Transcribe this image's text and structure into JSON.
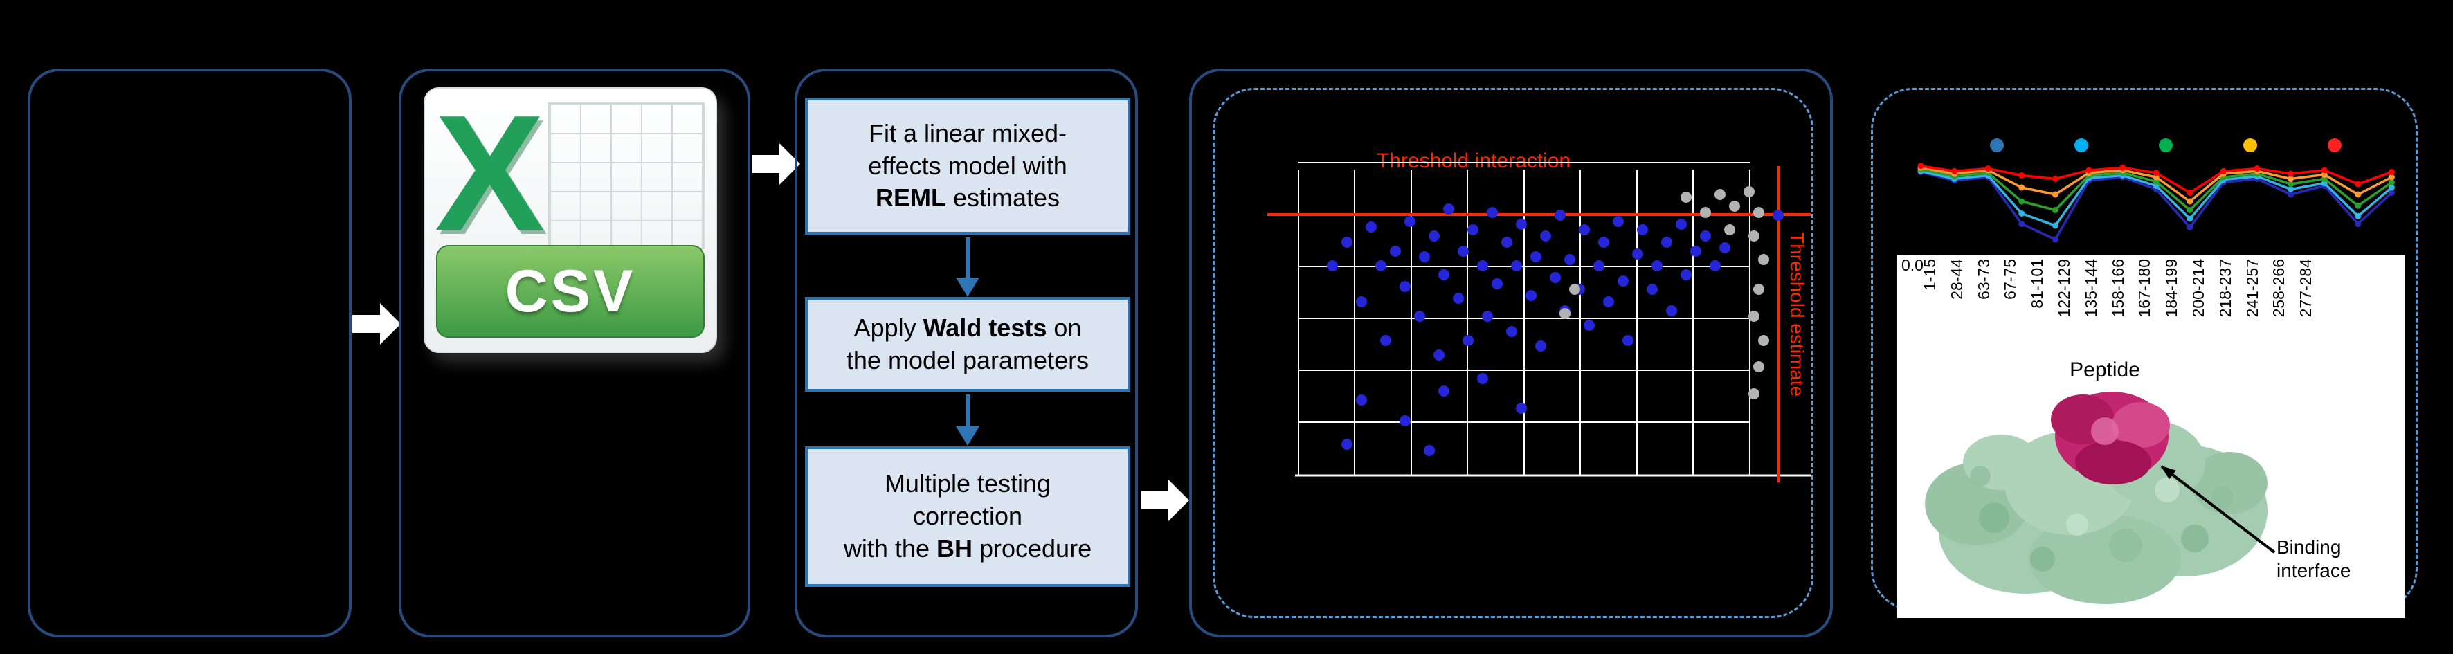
{
  "figure": {
    "background": "#000000"
  },
  "colors": {
    "panel_border": "#274b7d",
    "dashed_border": "#5b9bd5",
    "flow_accent": "#2e75b6",
    "step_box_fill": "#dbe5f1",
    "threshold_red": "#ff2600",
    "significant_blue": "#2626d9",
    "nonsignificant_gray": "#b3b3b3",
    "csv_green": "#3d9a44",
    "protein_green": "#a4ccb0",
    "binding_magenta": "#c2266e"
  },
  "csv_icon": {
    "logo_letter": "X",
    "format_label": "CSV"
  },
  "workflow": {
    "steps": [
      {
        "segments": [
          {
            "t": "Fit a linear mixed-\neffects model with\n"
          },
          {
            "t": "REML",
            "b": true
          },
          {
            "t": " estimates"
          }
        ]
      },
      {
        "segments": [
          {
            "t": "Apply "
          },
          {
            "t": "Wald tests",
            "b": true
          },
          {
            "t": " on\nthe model parameters"
          }
        ]
      },
      {
        "segments": [
          {
            "t": "Multiple testing\ncorrection\nwith the "
          },
          {
            "t": "BH",
            "b": true
          },
          {
            "t": " procedure"
          }
        ]
      }
    ]
  },
  "protein": {
    "binding_interface_label": "Binding interface"
  },
  "chart_data": [
    {
      "type": "scatter",
      "description": "Volcano-style scatter of mixed-model results; axis tick labels not legible in source, point coordinates normalized 0-1 (y measured from top of plot)",
      "grid": true,
      "annotations": [
        {
          "text": "Threshold interaction",
          "color": "#ff2600",
          "position": "top"
        },
        {
          "text": "Threshold estimate",
          "color": "#ff2600",
          "position": "right-vertical"
        }
      ],
      "threshold_lines": {
        "horizontal_y": 0.13,
        "vertical_x": 0.99,
        "color": "#ff2600"
      },
      "series": [
        {
          "name": "significant",
          "color": "#2626d9",
          "points": [
            [
              0.07,
              0.3
            ],
            [
              0.1,
              0.22
            ],
            [
              0.13,
              0.42
            ],
            [
              0.15,
              0.17
            ],
            [
              0.17,
              0.3
            ],
            [
              0.18,
              0.55
            ],
            [
              0.2,
              0.25
            ],
            [
              0.22,
              0.37
            ],
            [
              0.23,
              0.15
            ],
            [
              0.25,
              0.47
            ],
            [
              0.26,
              0.27
            ],
            [
              0.28,
              0.2
            ],
            [
              0.29,
              0.6
            ],
            [
              0.3,
              0.33
            ],
            [
              0.31,
              0.11
            ],
            [
              0.33,
              0.41
            ],
            [
              0.34,
              0.25
            ],
            [
              0.35,
              0.55
            ],
            [
              0.36,
              0.18
            ],
            [
              0.38,
              0.3
            ],
            [
              0.39,
              0.47
            ],
            [
              0.4,
              0.12
            ],
            [
              0.41,
              0.36
            ],
            [
              0.43,
              0.22
            ],
            [
              0.44,
              0.52
            ],
            [
              0.45,
              0.3
            ],
            [
              0.46,
              0.16
            ],
            [
              0.48,
              0.4
            ],
            [
              0.49,
              0.27
            ],
            [
              0.5,
              0.57
            ],
            [
              0.51,
              0.2
            ],
            [
              0.53,
              0.34
            ],
            [
              0.54,
              0.13
            ],
            [
              0.55,
              0.45
            ],
            [
              0.56,
              0.28
            ],
            [
              0.58,
              0.38
            ],
            [
              0.59,
              0.18
            ],
            [
              0.6,
              0.5
            ],
            [
              0.62,
              0.3
            ],
            [
              0.63,
              0.22
            ],
            [
              0.64,
              0.42
            ],
            [
              0.66,
              0.15
            ],
            [
              0.67,
              0.35
            ],
            [
              0.68,
              0.55
            ],
            [
              0.7,
              0.26
            ],
            [
              0.71,
              0.18
            ],
            [
              0.73,
              0.38
            ],
            [
              0.74,
              0.3
            ],
            [
              0.76,
              0.22
            ],
            [
              0.77,
              0.45
            ],
            [
              0.79,
              0.16
            ],
            [
              0.8,
              0.33
            ],
            [
              0.82,
              0.25
            ],
            [
              0.84,
              0.2
            ],
            [
              0.86,
              0.3
            ],
            [
              0.88,
              0.24
            ],
            [
              0.13,
              0.75
            ],
            [
              0.22,
              0.82
            ],
            [
              0.3,
              0.72
            ],
            [
              0.38,
              0.68
            ],
            [
              0.46,
              0.78
            ],
            [
              0.1,
              0.9
            ],
            [
              0.27,
              0.92
            ],
            [
              0.99,
              0.13
            ]
          ]
        },
        {
          "name": "not-significant",
          "color": "#b3b3b3",
          "points": [
            [
              0.8,
              0.07
            ],
            [
              0.84,
              0.12
            ],
            [
              0.87,
              0.06
            ],
            [
              0.9,
              0.1
            ],
            [
              0.93,
              0.05
            ],
            [
              0.95,
              0.12
            ],
            [
              0.94,
              0.2
            ],
            [
              0.96,
              0.28
            ],
            [
              0.95,
              0.38
            ],
            [
              0.94,
              0.47
            ],
            [
              0.96,
              0.55
            ],
            [
              0.95,
              0.64
            ],
            [
              0.94,
              0.73
            ],
            [
              0.57,
              0.38
            ],
            [
              0.55,
              0.46
            ],
            [
              0.89,
              0.18
            ]
          ]
        }
      ]
    },
    {
      "type": "line",
      "title": "",
      "xlabel": "Peptide",
      "visible_ytick": "0.0",
      "categories": [
        "1-15",
        "28-44",
        "63-73",
        "67-75",
        "81-101",
        "122-129",
        "135-144",
        "158-166",
        "167-180",
        "184-199",
        "200-214",
        "218-237",
        "241-257",
        "258-266",
        "277-284"
      ],
      "legend_dots": [
        "#2e75b6",
        "#00b0f0",
        "#00b050",
        "#ffc000",
        "#ff2222"
      ],
      "values_note": "values normalized 0-1 (1 = top baseline, dips = larger difference)",
      "series": [
        {
          "name": "deep-blue",
          "color": "#2929b8",
          "values": [
            0.86,
            0.76,
            0.8,
            0.26,
            0.08,
            0.76,
            0.8,
            0.66,
            0.22,
            0.74,
            0.78,
            0.6,
            0.7,
            0.26,
            0.62
          ]
        },
        {
          "name": "light-blue",
          "color": "#33b4e4",
          "values": [
            0.87,
            0.78,
            0.82,
            0.38,
            0.24,
            0.79,
            0.82,
            0.7,
            0.32,
            0.77,
            0.81,
            0.66,
            0.73,
            0.35,
            0.68
          ]
        },
        {
          "name": "green",
          "color": "#2ca02c",
          "values": [
            0.89,
            0.81,
            0.85,
            0.52,
            0.42,
            0.82,
            0.85,
            0.75,
            0.42,
            0.8,
            0.84,
            0.72,
            0.78,
            0.47,
            0.74
          ]
        },
        {
          "name": "orange",
          "color": "#ff9933",
          "values": [
            0.91,
            0.84,
            0.88,
            0.68,
            0.6,
            0.85,
            0.88,
            0.8,
            0.52,
            0.84,
            0.87,
            0.78,
            0.83,
            0.6,
            0.8
          ]
        },
        {
          "name": "red",
          "color": "#ff0000",
          "values": [
            0.93,
            0.87,
            0.9,
            0.82,
            0.78,
            0.88,
            0.91,
            0.85,
            0.62,
            0.87,
            0.9,
            0.84,
            0.88,
            0.72,
            0.86
          ]
        }
      ]
    }
  ]
}
